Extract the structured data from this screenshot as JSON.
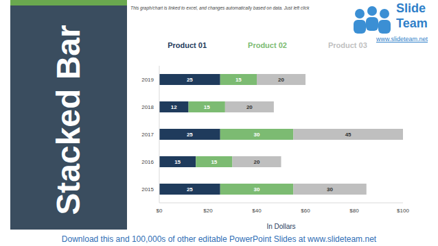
{
  "slide": {
    "title": "Stacked Bar",
    "note": "This graph/chart is linked to excel, and changes automatically based on data. Just left click",
    "logo": {
      "line1": "Slide",
      "line2": "Team",
      "url": "www.slideteam.net"
    },
    "footer": "Download this and 100,000s of other editable PowerPoint Slides at www.slideteam.net"
  },
  "chart_data": {
    "type": "bar",
    "orientation": "horizontal",
    "stacked": true,
    "categories": [
      "2015",
      "2016",
      "2017",
      "2018",
      "2019"
    ],
    "series": [
      {
        "name": "Product 01",
        "color": "#1f3b5c",
        "values": [
          25,
          15,
          25,
          12,
          25
        ]
      },
      {
        "name": "Product 02",
        "color": "#7cbb72",
        "values": [
          30,
          15,
          30,
          15,
          15
        ]
      },
      {
        "name": "Product 03",
        "color": "#bfbfbf",
        "values": [
          30,
          20,
          45,
          20,
          20
        ]
      }
    ],
    "xlim": [
      0,
      100
    ],
    "xticks": [
      {
        "value": 0,
        "label": "$0"
      },
      {
        "value": 20,
        "label": "$20"
      },
      {
        "value": 40,
        "label": "$40"
      },
      {
        "value": 60,
        "label": "$60"
      },
      {
        "value": 80,
        "label": "$80"
      },
      {
        "value": 100,
        "label": "$100"
      }
    ],
    "x_label": "In Dollars",
    "legend": "top",
    "data_labels": true,
    "grid": false
  }
}
